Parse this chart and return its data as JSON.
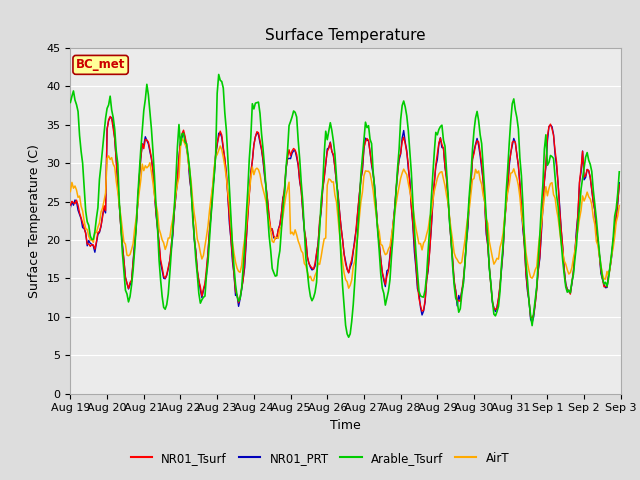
{
  "title": "Surface Temperature",
  "ylabel": "Surface Temperature (C)",
  "xlabel": "Time",
  "annotation": "BC_met",
  "ylim": [
    0,
    45
  ],
  "yticks": [
    0,
    5,
    10,
    15,
    20,
    25,
    30,
    35,
    40,
    45
  ],
  "x_tick_labels": [
    "Aug 19",
    "Aug 20",
    "Aug 21",
    "Aug 22",
    "Aug 23",
    "Aug 24",
    "Aug 25",
    "Aug 26",
    "Aug 27",
    "Aug 28",
    "Aug 29",
    "Aug 30",
    "Aug 31",
    "Sep 1",
    "Sep 2",
    "Sep 3"
  ],
  "series": [
    "NR01_Tsurf",
    "NR01_PRT",
    "Arable_Tsurf",
    "AirT"
  ],
  "colors": [
    "#ff0000",
    "#0000bb",
    "#00cc00",
    "#ffaa00"
  ],
  "background_color": "#dddddd",
  "plot_bg_color": "#ebebeb",
  "annotation_bg": "#ffff99",
  "annotation_border": "#aa0000",
  "annotation_text_color": "#cc0000",
  "n_days": 15,
  "pts_per_day": 24,
  "title_fontsize": 11,
  "label_fontsize": 9,
  "tick_fontsize": 8
}
